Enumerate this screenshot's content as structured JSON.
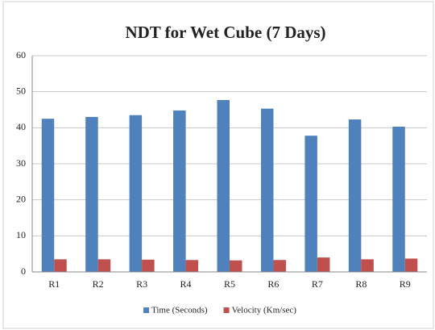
{
  "chart_data": {
    "type": "bar",
    "title": "NDT for Wet Cube (7 Days)",
    "categories": [
      "R1",
      "R2",
      "R3",
      "R4",
      "R5",
      "R6",
      "R7",
      "R8",
      "R9"
    ],
    "series": [
      {
        "name": "Time (Seconds)",
        "color": "#4f81bd",
        "values": [
          42.5,
          43,
          43.5,
          44.8,
          47.7,
          45.3,
          37.8,
          42.3,
          40.3
        ]
      },
      {
        "name": "Velocity (Km/sec)",
        "color": "#c0504d",
        "values": [
          3.5,
          3.5,
          3.4,
          3.3,
          3.2,
          3.3,
          4.0,
          3.5,
          3.7
        ]
      }
    ],
    "ylim": [
      0,
      60
    ],
    "yticks": [
      0,
      10,
      20,
      30,
      40,
      50,
      60
    ],
    "grid": true,
    "legend": "bottom"
  }
}
